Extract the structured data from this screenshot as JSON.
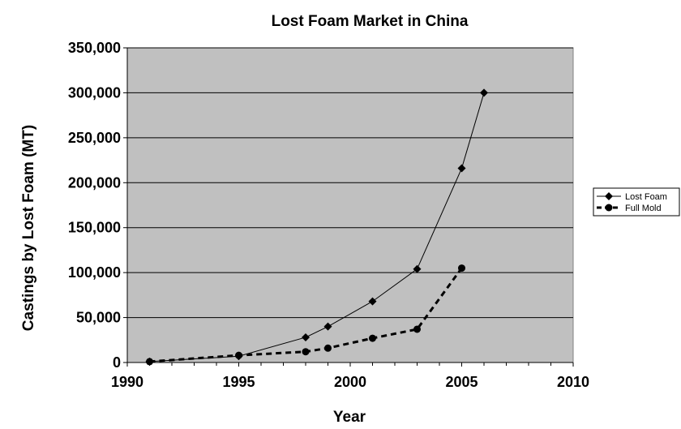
{
  "chart_data": {
    "type": "line",
    "title": "Lost Foam Market in China",
    "xlabel": "Year",
    "ylabel": "Castings by Lost Foam (MT)",
    "xlim": [
      1990,
      2010
    ],
    "ylim": [
      0,
      350000
    ],
    "x_ticks": [
      1990,
      1995,
      2000,
      2005,
      2010
    ],
    "y_ticks": [
      0,
      50000,
      100000,
      150000,
      200000,
      250000,
      300000,
      350000
    ],
    "x_tick_labels": [
      "1990",
      "1995",
      "2000",
      "2005",
      "2010"
    ],
    "y_tick_labels": [
      "0",
      "50,000",
      "100,000",
      "150,000",
      "200,000",
      "250,000",
      "300,000",
      "350,000"
    ],
    "grid": "horizontal",
    "plot_background": "#c0c0c0",
    "legend_position": "right",
    "series": [
      {
        "name": "Lost Foam",
        "marker": "diamond",
        "line_style": "solid",
        "color": "#000000",
        "x": [
          1991,
          1995,
          1998,
          1999,
          2001,
          2003,
          2005,
          2006
        ],
        "y": [
          1000,
          7000,
          28000,
          40000,
          68000,
          104000,
          216000,
          300000
        ]
      },
      {
        "name": "Full Mold",
        "marker": "circle",
        "line_style": "dashed",
        "color": "#000000",
        "x": [
          1991,
          1995,
          1998,
          1999,
          2001,
          2003,
          2005
        ],
        "y": [
          1000,
          8000,
          12000,
          16000,
          27000,
          37000,
          105000
        ]
      }
    ]
  }
}
